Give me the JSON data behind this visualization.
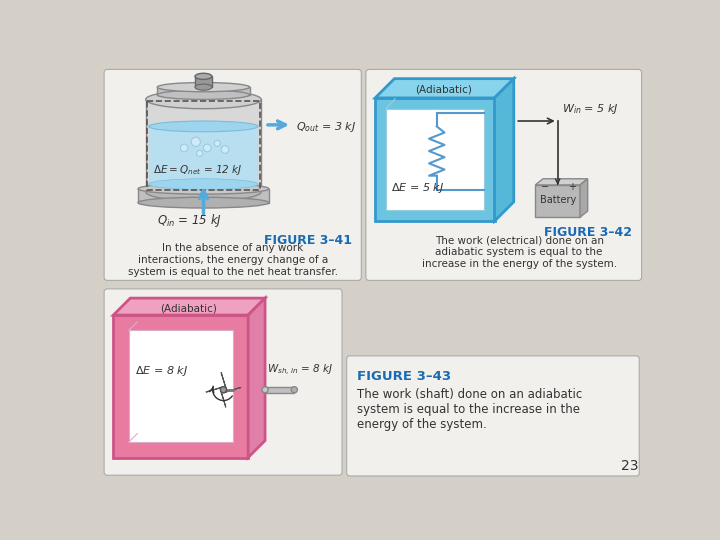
{
  "background_color": "#d4d0c8",
  "page_num": "23",
  "fig41": {
    "title": "FIGURE 3–41",
    "caption": "In the absence of any work\ninteractions, the energy change of a\nsystem is equal to the net heat transfer.",
    "label_qout": "$Q_{out}$ = 3 kJ",
    "label_qin": "$Q_{in}$ = 15 kJ",
    "label_delta_e": "$\\Delta E = Q_{net}$ = 12 kJ"
  },
  "fig42": {
    "title": "FIGURE 3–42",
    "caption": "The work (electrical) done on an\nadiabatic system is equal to the\nincrease in the energy of the system.",
    "label_win": "$W_{in}$ = 5 kJ",
    "label_delta_e": "$\\Delta E$ = 5 kJ",
    "label_adiabatic": "(Adiabatic)"
  },
  "fig43": {
    "title": "FIGURE 3–43",
    "caption": "The work (shaft) done on an adiabatic\nsystem is equal to the increase in the\nenergy of the system.",
    "label_win": "$W_{sh,\\, in}$ = 8 kJ",
    "label_delta_e": "$\\Delta E$ = 8 kJ",
    "label_adiabatic": "(Adiabatic)"
  },
  "panel_bg": "#f2f0ec",
  "title_color": "#1a6bb5",
  "caption_color": "#333333",
  "box42_color": "#6cc5e0",
  "box43_color": "#e87ca0"
}
